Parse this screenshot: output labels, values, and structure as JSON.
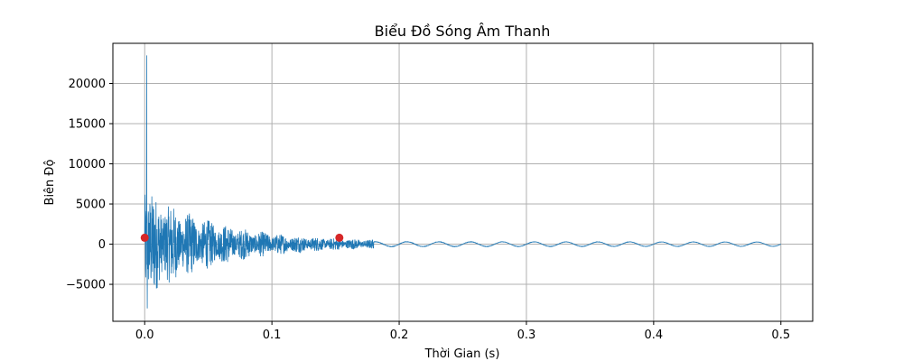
{
  "chart_data": {
    "type": "line",
    "title": "Biểu Đồ Sóng Âm Thanh",
    "xlabel": "Thời Gian (s)",
    "ylabel": "Biên Độ",
    "xlim": [
      -0.025,
      0.525
    ],
    "ylim": [
      -9600,
      25000
    ],
    "x_ticks": [
      0.0,
      0.1,
      0.2,
      0.3,
      0.4,
      0.5
    ],
    "x_tick_labels": [
      "0.0",
      "0.1",
      "0.2",
      "0.3",
      "0.4",
      "0.5"
    ],
    "y_ticks": [
      -5000,
      0,
      5000,
      10000,
      15000,
      20000
    ],
    "y_tick_labels": [
      "−5000",
      "0",
      "5000",
      "10000",
      "15000",
      "20000"
    ],
    "grid": true,
    "legend": false,
    "colors": {
      "line": "#1f77b4",
      "markers": "#d62728",
      "grid": "#b0b0b0",
      "axes": "#000000"
    },
    "waveform": {
      "duration": 0.5,
      "peak": 23500,
      "trough": -8000,
      "tail_amplitude": 300,
      "tail_frequency_hz": 40
    },
    "series": [
      {
        "type": "scatter",
        "x": [
          0.0,
          0.153
        ],
        "y": [
          800,
          800
        ]
      }
    ]
  }
}
